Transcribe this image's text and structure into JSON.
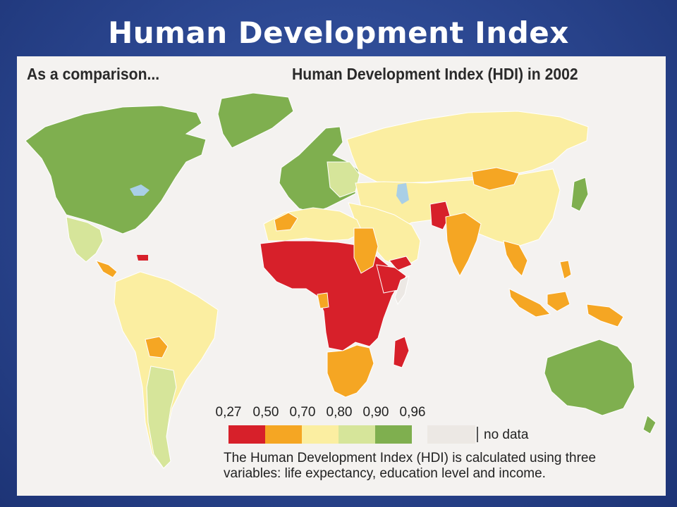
{
  "slide": {
    "title": "Human Development Index"
  },
  "map": {
    "subtitle_left": "As a comparison...",
    "subtitle_right": "Human Development Index (HDI) in 2002",
    "ocean_color": "#f4f2f0",
    "water_color": "#a9cfe6",
    "legend": {
      "ticks": [
        "0,27",
        "0,50",
        "0,70",
        "0,80",
        "0,90",
        "0,96"
      ],
      "colors": [
        "#d7202a",
        "#f5a623",
        "#fbeea1",
        "#d6e59a",
        "#7faf4f"
      ],
      "no_data_label": "no data",
      "no_data_color": "#ece8e4"
    },
    "note_lines": [
      "The Human Development Index (HDI) is calculated using three",
      "variables: life expectancy, education level and income."
    ]
  }
}
